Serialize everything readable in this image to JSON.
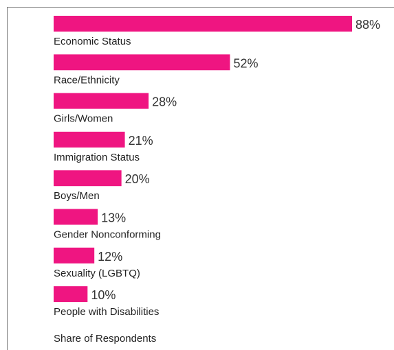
{
  "chart_data": {
    "type": "bar",
    "orientation": "horizontal",
    "categories": [
      "Economic Status",
      "Race/Ethnicity",
      "Girls/Women",
      "Immigration Status",
      "Boys/Men",
      "Gender Nonconforming",
      "Sexuality (LGBTQ)",
      "People with Disabilities"
    ],
    "values": [
      88,
      52,
      28,
      21,
      20,
      13,
      12,
      10
    ],
    "value_labels": [
      "88%",
      "52%",
      "28%",
      "21%",
      "20%",
      "13%",
      "12%",
      "10%"
    ],
    "xlabel": "Share of Respondents",
    "xlim": [
      0,
      100
    ],
    "grid": false,
    "legend": "none",
    "bar_color": "#ef1581"
  }
}
